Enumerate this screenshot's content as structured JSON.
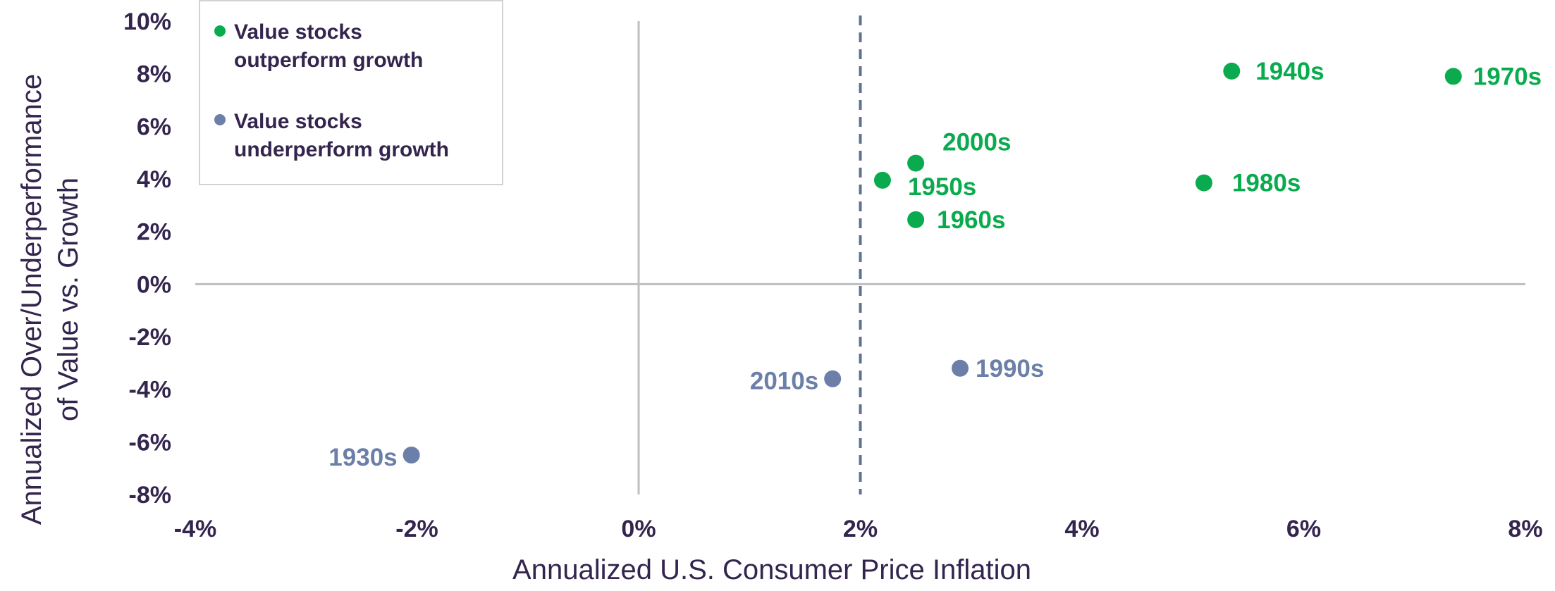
{
  "chart_data": {
    "type": "scatter",
    "xlabel": "Annualized U.S. Consumer Price Inflation",
    "ylabel_lines": [
      "Annualized Over/Underperformance",
      "of Value vs. Growth"
    ],
    "xlim": [
      -4,
      8
    ],
    "ylim": [
      -8,
      10
    ],
    "x_ticks": [
      -4,
      -2,
      0,
      2,
      4,
      6,
      8
    ],
    "y_ticks": [
      10,
      8,
      6,
      4,
      2,
      0,
      -2,
      -4,
      -6,
      -8
    ],
    "x_tick_labels": [
      "-4%",
      "-2%",
      "0%",
      "2%",
      "4%",
      "6%",
      "8%"
    ],
    "y_tick_labels": [
      "10%",
      "8%",
      "6%",
      "4%",
      "2%",
      "0%",
      "-2%",
      "-4%",
      "-6%",
      "-8%"
    ],
    "reference_line_x": 2,
    "legend_position": "top-left",
    "grid": false,
    "series": [
      {
        "name_lines": [
          "Value stocks",
          "outperform growth"
        ],
        "color": "#0aab4e",
        "points": [
          {
            "label": "1940s",
            "x": 5.35,
            "y": 8.1
          },
          {
            "label": "1970s",
            "x": 7.35,
            "y": 7.9
          },
          {
            "label": "2000s",
            "x": 2.5,
            "y": 4.6
          },
          {
            "label": "1950s",
            "x": 2.2,
            "y": 3.95
          },
          {
            "label": "1980s",
            "x": 5.1,
            "y": 3.85
          },
          {
            "label": "1960s",
            "x": 2.5,
            "y": 2.45
          }
        ]
      },
      {
        "name_lines": [
          "Value stocks",
          "underperform growth"
        ],
        "color": "#6b7fa8",
        "points": [
          {
            "label": "1990s",
            "x": 2.9,
            "y": -3.2
          },
          {
            "label": "2010s",
            "x": 1.75,
            "y": -3.6
          },
          {
            "label": "1930s",
            "x": -2.05,
            "y": -6.5
          }
        ]
      }
    ]
  }
}
